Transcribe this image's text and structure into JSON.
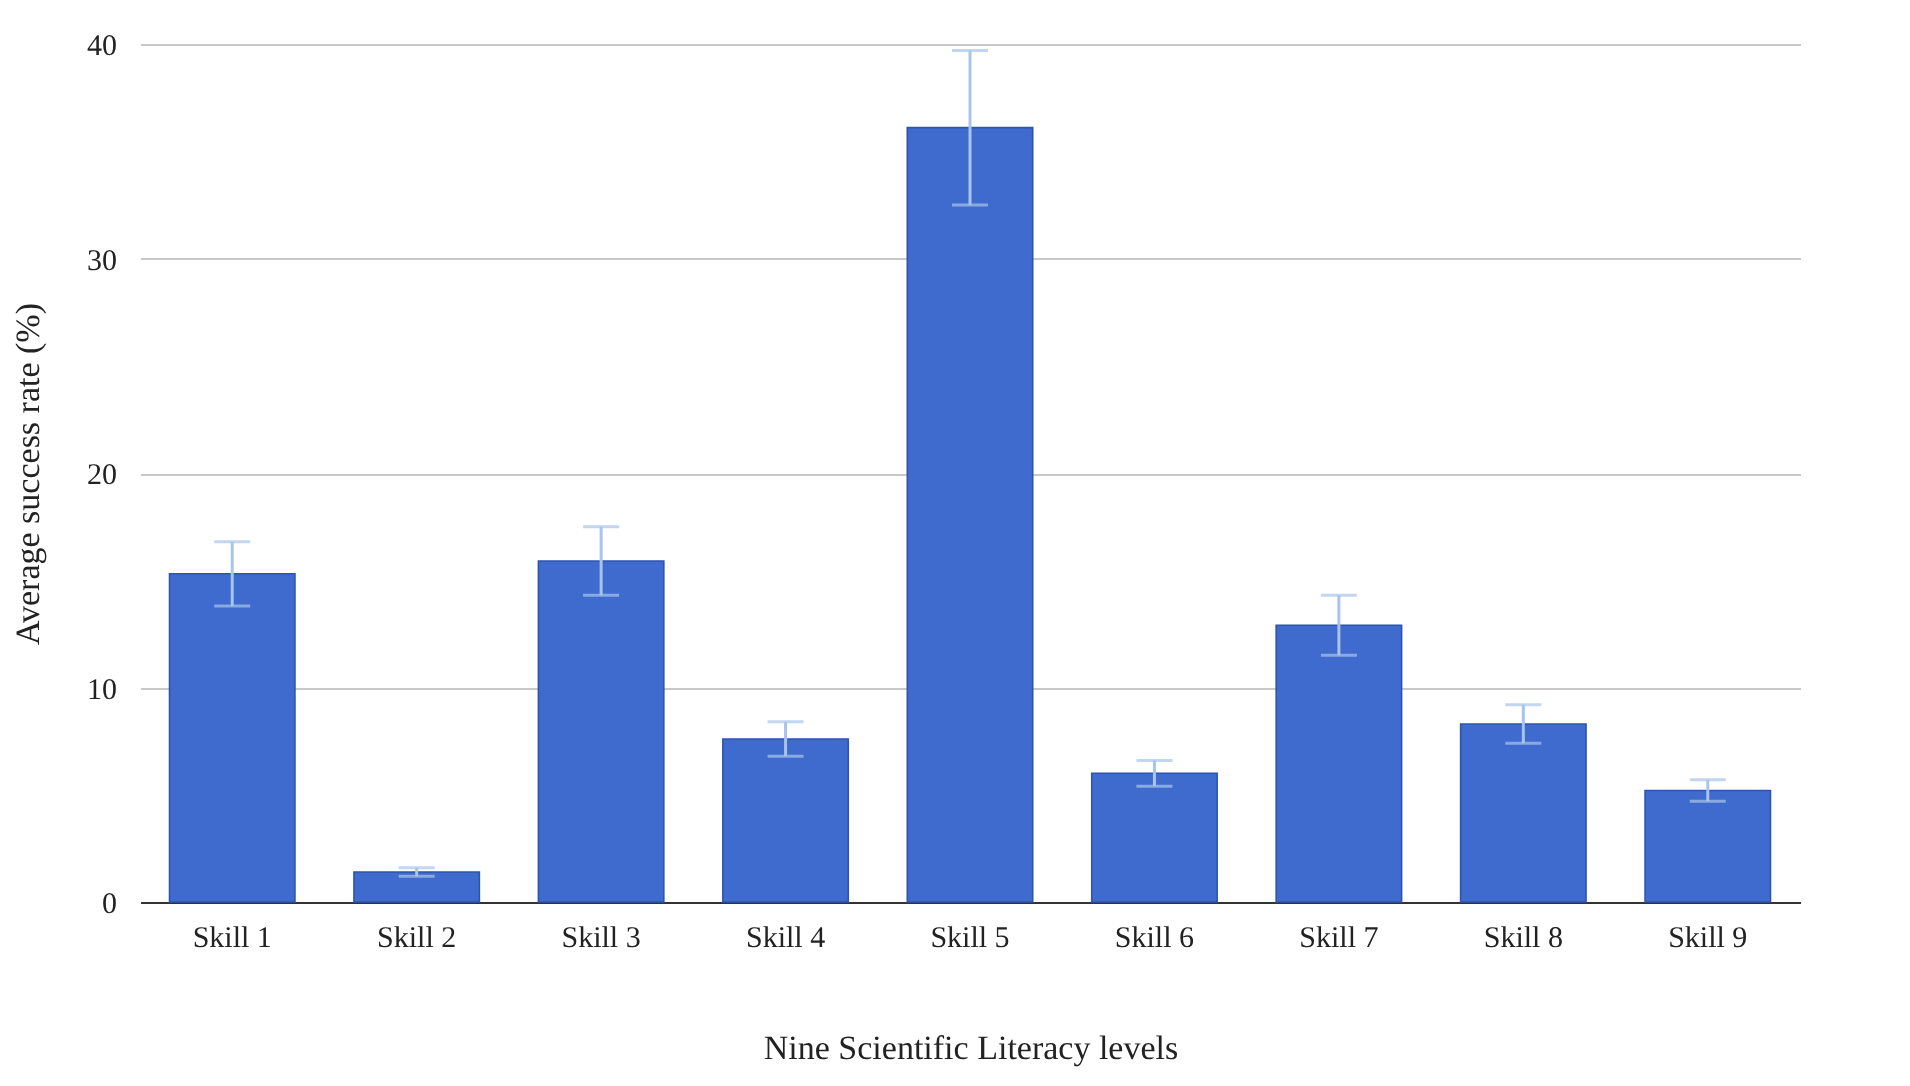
{
  "chart_data": {
    "type": "bar",
    "xlabel": "Nine Scientific Literacy levels",
    "ylabel": "Average success rate (%)",
    "categories": [
      "Skill 1",
      "Skill 2",
      "Skill 3",
      "Skill 4",
      "Skill 5",
      "Skill 6",
      "Skill 7",
      "Skill 8",
      "Skill 9"
    ],
    "values": [
      15.3,
      1.4,
      15.9,
      7.6,
      36.1,
      6.0,
      12.9,
      8.3,
      5.2
    ],
    "errors": [
      1.5,
      0.2,
      1.6,
      0.8,
      3.6,
      0.6,
      1.4,
      0.9,
      0.5
    ],
    "color": "#3e6bcd",
    "ylim": [
      0,
      40
    ],
    "yticks": [
      0,
      10,
      20,
      30,
      40
    ],
    "grid": "y"
  }
}
